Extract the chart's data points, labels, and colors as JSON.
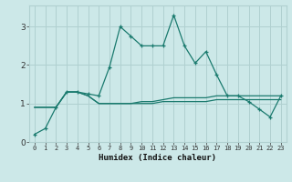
{
  "xlabel": "Humidex (Indice chaleur)",
  "x": [
    0,
    1,
    2,
    3,
    4,
    5,
    6,
    7,
    8,
    9,
    10,
    11,
    12,
    13,
    14,
    15,
    16,
    17,
    18,
    19,
    20,
    21,
    22,
    23
  ],
  "line1": [
    0.2,
    0.35,
    0.9,
    1.3,
    1.3,
    1.25,
    1.2,
    1.95,
    3.0,
    2.75,
    2.5,
    2.5,
    2.5,
    3.3,
    2.5,
    2.05,
    2.35,
    1.75,
    1.2,
    1.2,
    1.05,
    0.85,
    0.65,
    1.2
  ],
  "line2": [
    0.9,
    0.9,
    0.9,
    1.3,
    1.3,
    1.2,
    1.0,
    1.0,
    1.0,
    1.0,
    1.05,
    1.05,
    1.1,
    1.15,
    1.15,
    1.15,
    1.15,
    1.2,
    1.2,
    1.2,
    1.2,
    1.2,
    1.2,
    1.2
  ],
  "line3": [
    0.9,
    0.9,
    0.9,
    1.3,
    1.3,
    1.2,
    1.0,
    1.0,
    1.0,
    1.0,
    1.0,
    1.0,
    1.05,
    1.05,
    1.05,
    1.05,
    1.05,
    1.1,
    1.1,
    1.1,
    1.1,
    1.1,
    1.1,
    1.1
  ],
  "line_color": "#1a7a6e",
  "bg_color": "#cce8e8",
  "grid_color": "#b0d0d0",
  "ylim": [
    0.0,
    3.55
  ],
  "yticks": [
    0,
    1,
    2,
    3
  ],
  "xlim": [
    -0.5,
    23.5
  ]
}
